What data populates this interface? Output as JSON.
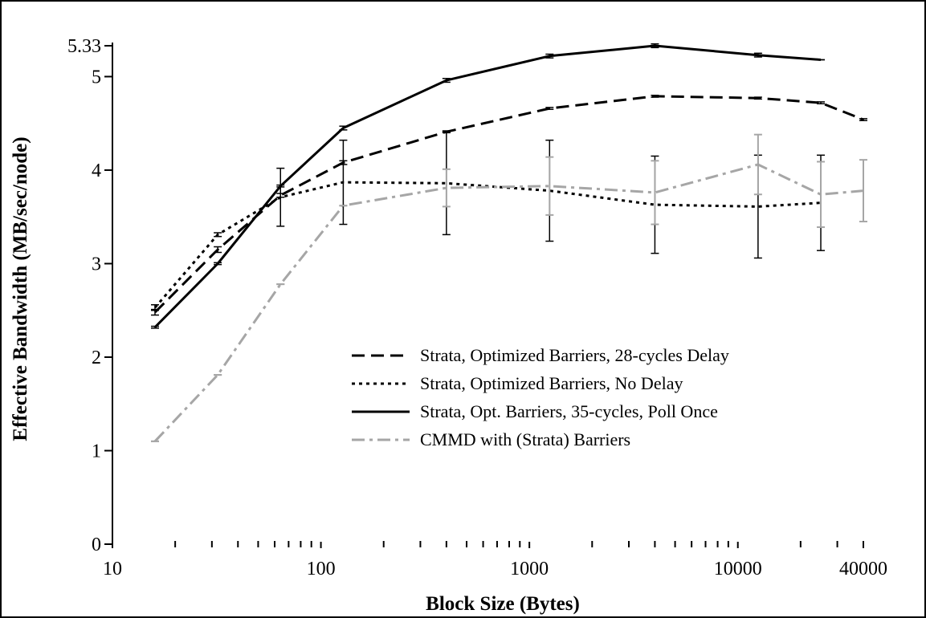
{
  "chart_data": {
    "type": "line",
    "title": "",
    "xlabel": "Block Size (Bytes)",
    "ylabel": "Effective Bandwidth (MB/sec/node)",
    "x_scale": "log",
    "xlim": [
      10,
      40000
    ],
    "ylim": [
      0,
      5.33
    ],
    "x_ticks": [
      10,
      100,
      1000,
      10000,
      40000
    ],
    "x_tick_labels": [
      "10",
      "100",
      "1000",
      "10000",
      "40000"
    ],
    "y_ticks": [
      0,
      1,
      2,
      3,
      4,
      5,
      5.33
    ],
    "y_tick_labels": [
      "0",
      "1",
      "2",
      "3",
      "4",
      "5",
      "5.33"
    ],
    "grid": false,
    "legend_position": "center-right",
    "series": [
      {
        "name": "Strata, Optimized Barriers, 28-cycles Delay",
        "color": "#000000",
        "dash": "dashed",
        "x": [
          16,
          32,
          64,
          128,
          400,
          1250,
          4000,
          12500,
          25000,
          40000
        ],
        "y": [
          2.48,
          3.15,
          3.73,
          4.08,
          4.41,
          4.66,
          4.79,
          4.77,
          4.72,
          4.54
        ],
        "err": [
          0.03,
          0.03,
          0.02,
          0.02,
          0.01,
          0.01,
          0.01,
          0.01,
          0.01,
          0.01
        ]
      },
      {
        "name": "Strata, Optimized Barriers, No Delay",
        "color": "#000000",
        "dash": "dotted",
        "x": [
          16,
          32,
          64,
          128,
          400,
          1250,
          4000,
          12500,
          25000
        ],
        "y": [
          2.53,
          3.31,
          3.71,
          3.87,
          3.86,
          3.78,
          3.63,
          3.61,
          3.65
        ],
        "err": [
          0.03,
          0.02,
          0.31,
          0.45,
          0.55,
          0.54,
          0.52,
          0.55,
          0.51
        ]
      },
      {
        "name": "Strata, Opt. Barriers, 35-cycles, Poll Once",
        "color": "#000000",
        "dash": "solid",
        "x": [
          16,
          32,
          64,
          128,
          400,
          1250,
          4000,
          12500,
          25000
        ],
        "y": [
          2.32,
          3.0,
          3.83,
          4.45,
          4.96,
          5.22,
          5.33,
          5.23,
          5.18
        ],
        "err": [
          0.01,
          0.01,
          0.01,
          0.02,
          0.02,
          0.02,
          0.02,
          0.02,
          0.0
        ]
      },
      {
        "name": "CMMD with (Strata) Barriers",
        "color": "#a6a6a6",
        "dash": "dashdot",
        "x": [
          16,
          32,
          64,
          128,
          400,
          1250,
          4000,
          12500,
          25000,
          40000
        ],
        "y": [
          1.1,
          1.81,
          2.78,
          3.62,
          3.81,
          3.83,
          3.76,
          4.06,
          3.74,
          3.78
        ],
        "err": [
          0.0,
          0.0,
          0.0,
          0.0,
          0.2,
          0.31,
          0.34,
          0.32,
          0.35,
          0.33
        ]
      }
    ]
  }
}
